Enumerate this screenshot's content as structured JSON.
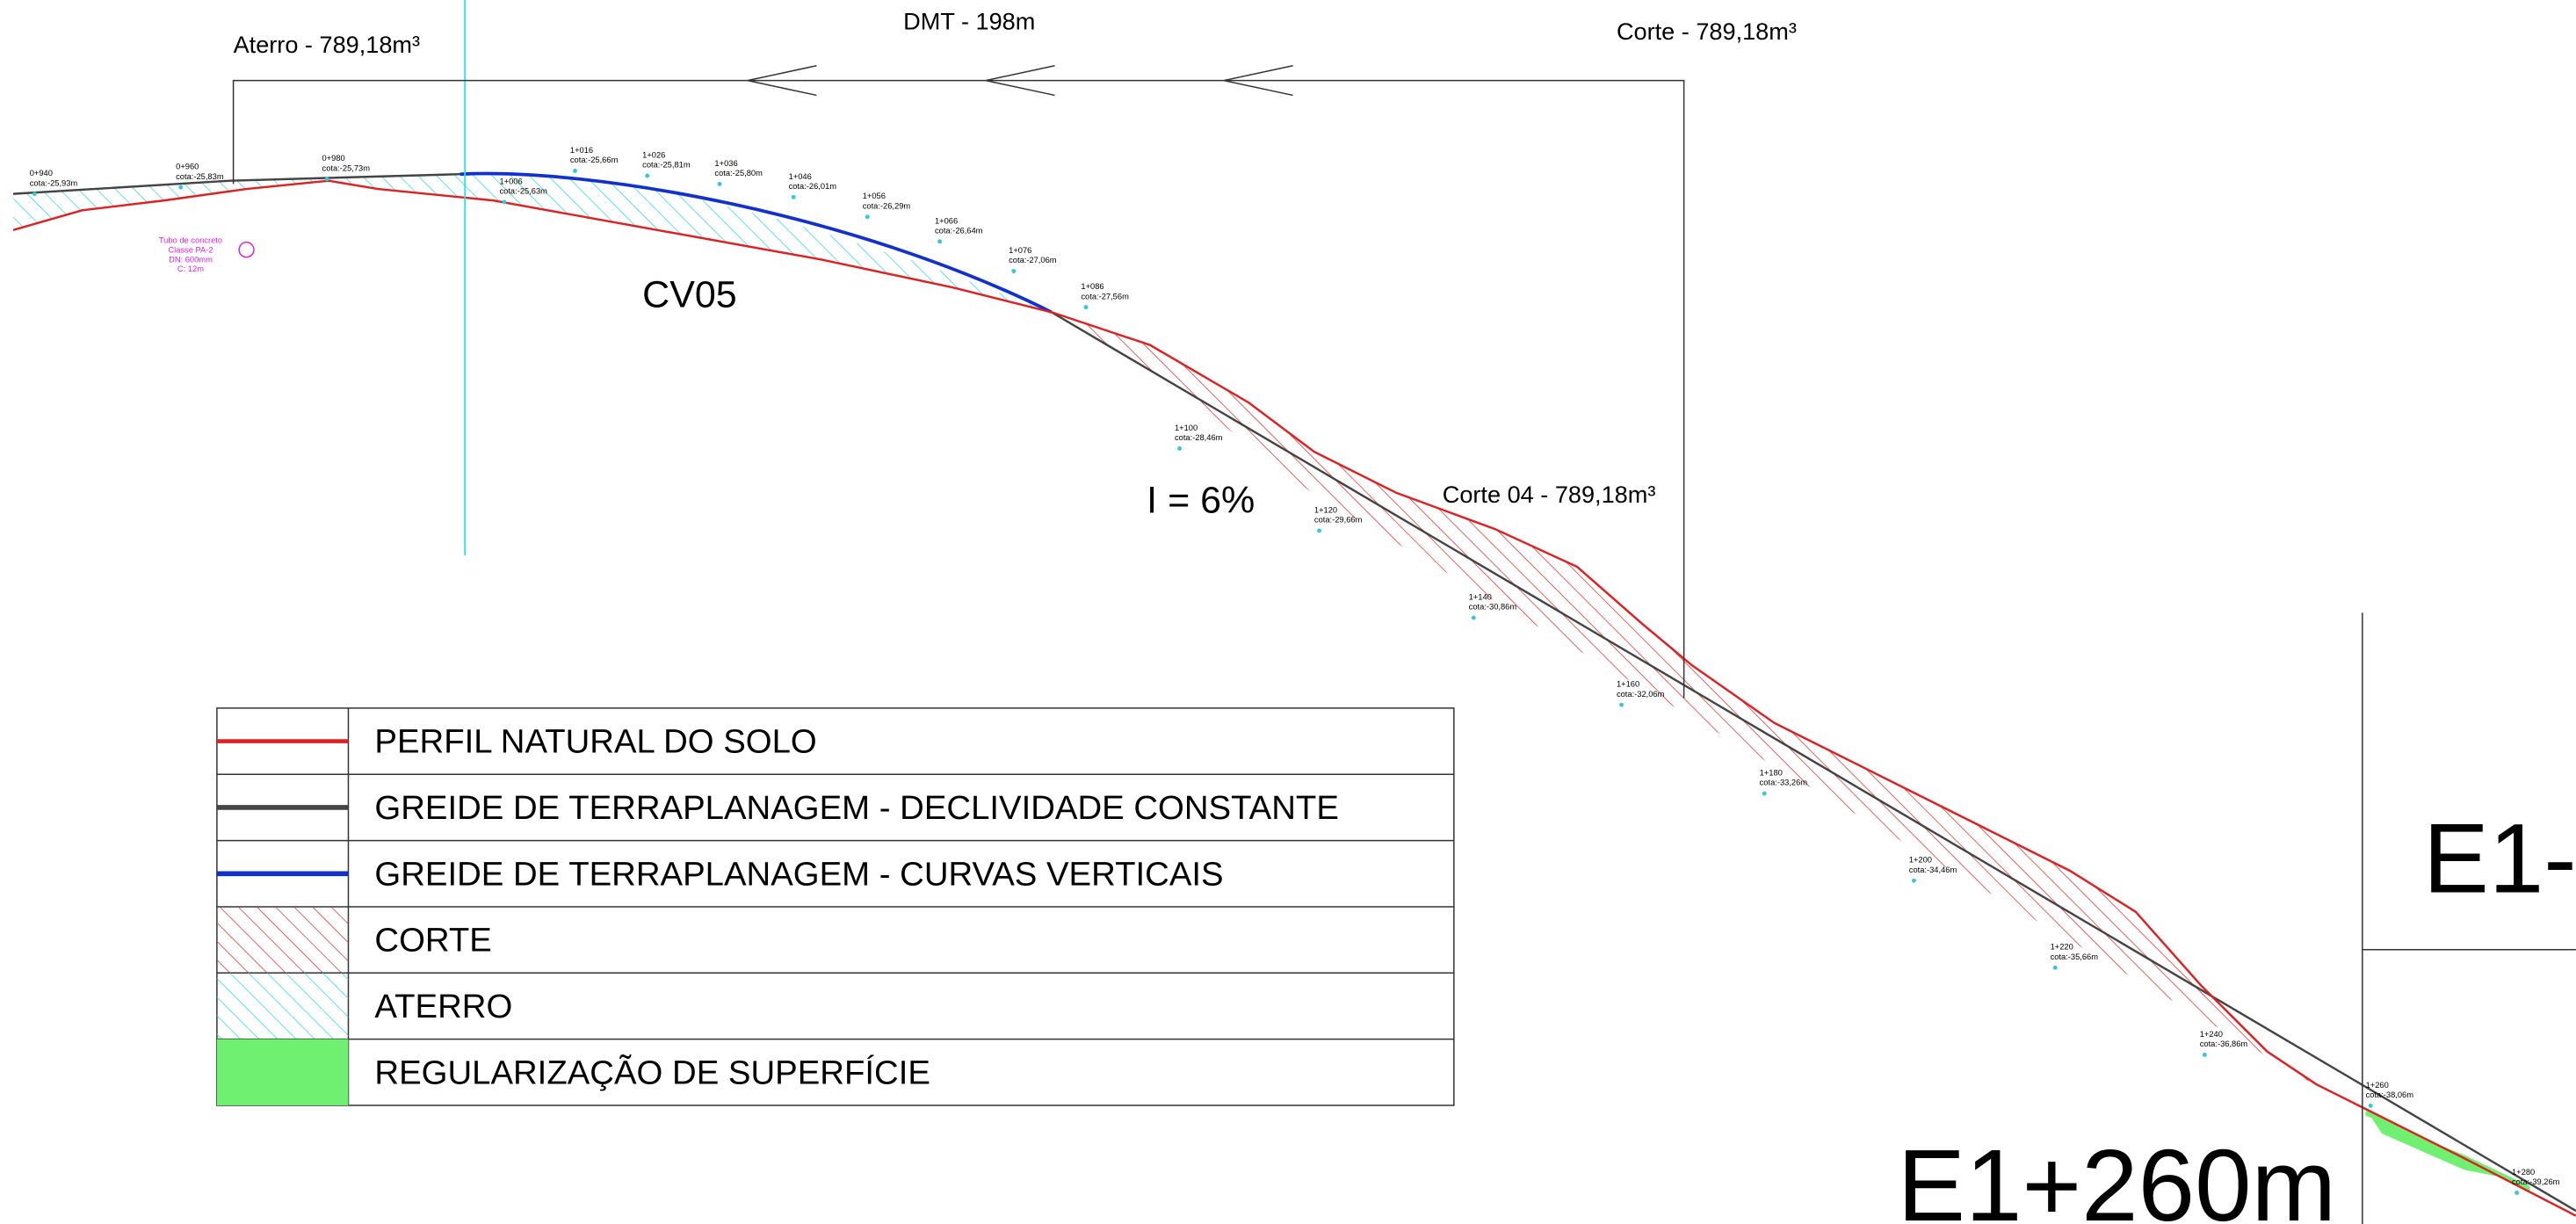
{
  "header": {
    "fill": "Aterro - 789,18m³",
    "haul": "DMT - 198m",
    "cut": "Corte - 789,18m³"
  },
  "curve_label": "CV05",
  "slope_label": "I = 6%",
  "cut_section": "Corte 04 - 789,18m³",
  "stations": [
    {
      "stake": "0+940",
      "elev": "cota:-25,93m"
    },
    {
      "stake": "0+960",
      "elev": "cota:-25,83m"
    },
    {
      "stake": "0+980",
      "elev": "cota:-25,73m"
    },
    {
      "stake": "1+006",
      "elev": "cota:-25,63m"
    },
    {
      "stake": "1+016",
      "elev": "cota:-25,66m"
    },
    {
      "stake": "1+026",
      "elev": "cota:-25,81m"
    },
    {
      "stake": "1+036",
      "elev": "cota:-25,80m"
    },
    {
      "stake": "1+046",
      "elev": "cota:-26,01m"
    },
    {
      "stake": "1+056",
      "elev": "cota:-26,29m"
    },
    {
      "stake": "1+066",
      "elev": "cota:-26,64m"
    },
    {
      "stake": "1+076",
      "elev": "cota:-27,06m"
    },
    {
      "stake": "1+086",
      "elev": "cota:-27,56m"
    },
    {
      "stake": "1+100",
      "elev": "cota:-28,46m"
    },
    {
      "stake": "1+120",
      "elev": "cota:-29,66m"
    },
    {
      "stake": "1+140",
      "elev": "cota:-30,86m"
    },
    {
      "stake": "1+160",
      "elev": "cota:-32,06m"
    },
    {
      "stake": "1+180",
      "elev": "cota:-33,26m"
    },
    {
      "stake": "1+200",
      "elev": "cota:-34,46m"
    },
    {
      "stake": "1+220",
      "elev": "cota:-35,66m"
    },
    {
      "stake": "1+240",
      "elev": "cota:-36,86m"
    },
    {
      "stake": "1+260",
      "elev": "cota:-38,06m"
    },
    {
      "stake": "1+280",
      "elev": "cota:-39,26m"
    }
  ],
  "pipe_note": [
    "Tubo de concreto",
    "Classe PA-2",
    "DN: 600mm",
    "C: 12m"
  ],
  "legend": [
    "PERFIL NATURAL DO SOLO",
    "GREIDE DE TERRAPLANAGEM - DECLIVIDADE CONSTANTE",
    "GREIDE DE TERRAPLANAGEM - CURVAS VERTICAIS",
    "CORTE",
    "ATERRO",
    "REGULARIZAÇÃO DE SUPERFÍCIE"
  ],
  "sheet_title": "E1+260m",
  "next_sheet": "E1-"
}
